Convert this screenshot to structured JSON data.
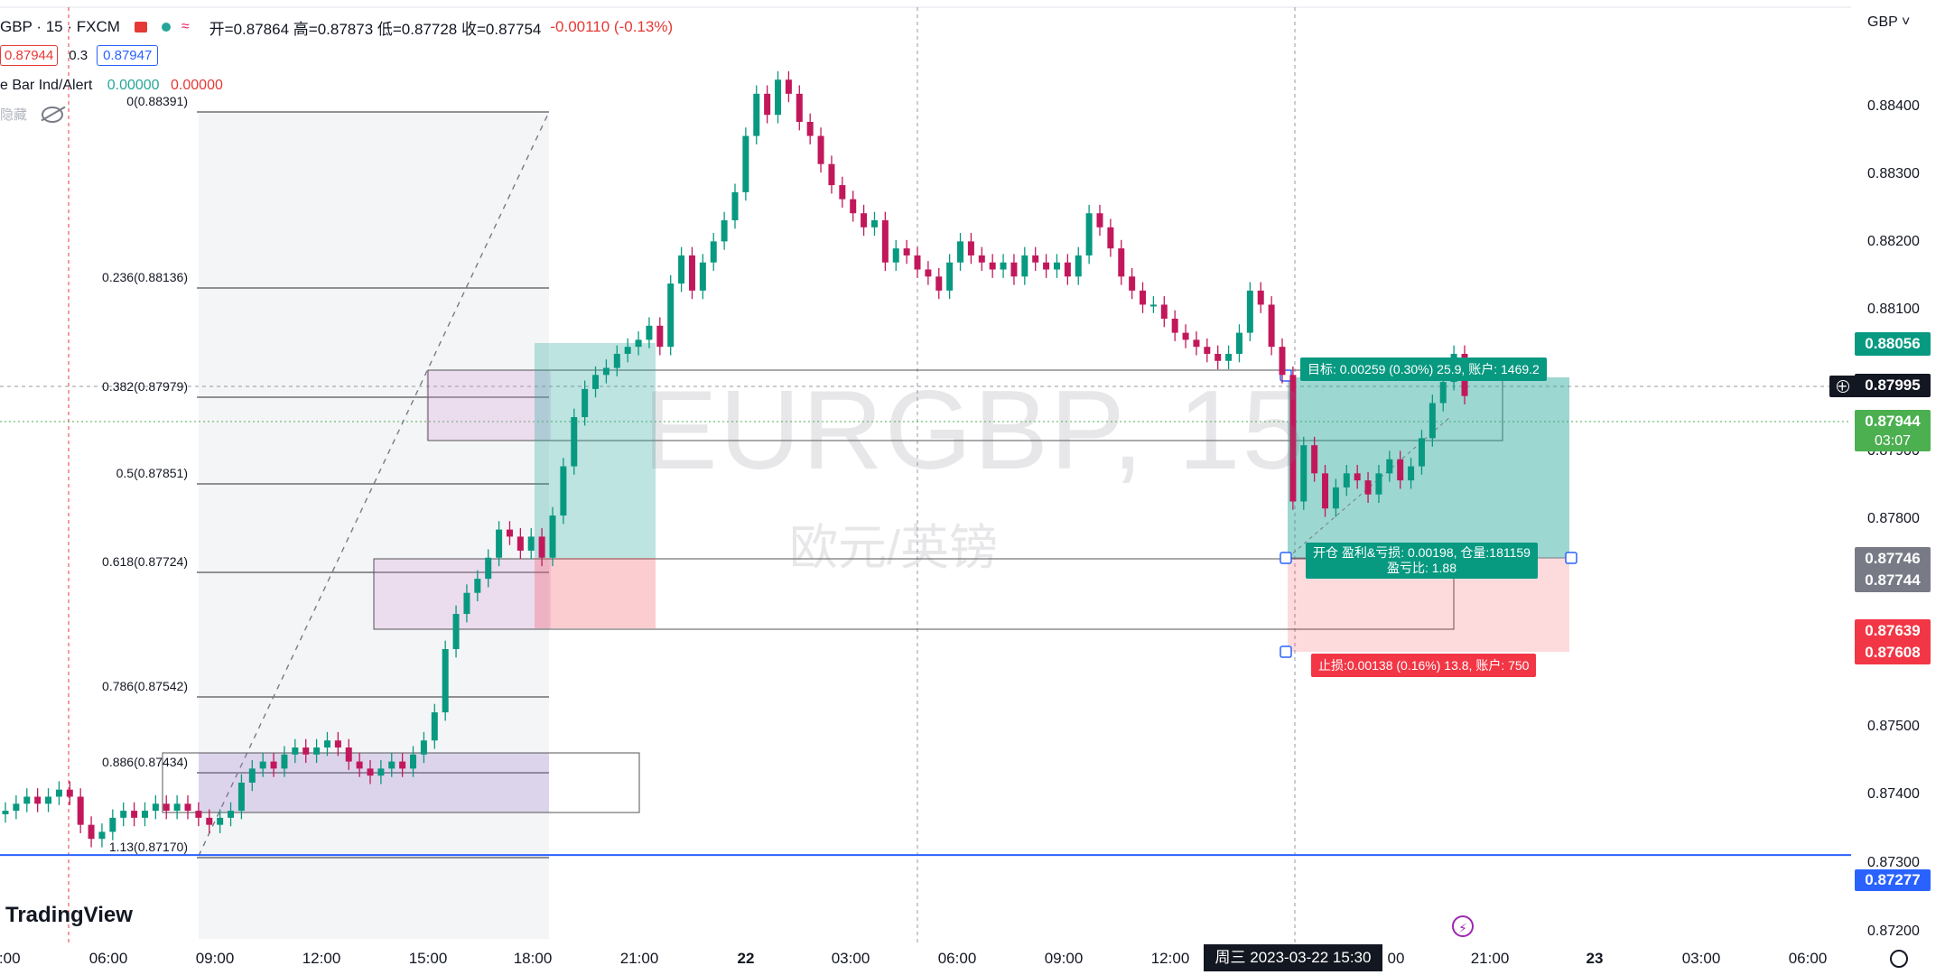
{
  "header": {
    "symbol": "GBP · 15 · FXCM",
    "ohlc": "开=0.87864 高=0.87873 低=0.87728 收=0.87754",
    "change": "-0.00110 (-0.13%)",
    "sell_price": "0.87944",
    "spread": "0.3",
    "buy_price": "0.87947",
    "indicator_name": "e Bar Ind/Alert",
    "indicator_v1": "0.00000",
    "indicator_v2": "0.00000",
    "hidden_label": "隐藏"
  },
  "watermark": {
    "symbol": "EURGBP, 15",
    "description": "欧元/英镑"
  },
  "price_axis": {
    "currency": "GBP",
    "ticks": [
      "0.88400",
      "0.88300",
      "0.88200",
      "0.88100",
      "0.87900",
      "0.87800",
      "0.87500",
      "0.87400",
      "0.87300",
      "0.87200"
    ],
    "labels": {
      "p1": "0.88056",
      "current": "0.87995",
      "last": "0.87944",
      "countdown": "03:07",
      "p2": "0.87746",
      "p3": "0.87744",
      "p4": "0.87639",
      "p5": "0.87608",
      "hline": "0.87277"
    }
  },
  "time_axis": {
    "ticks": [
      "0:00",
      "06:00",
      "09:00",
      "12:00",
      "15:00",
      "18:00",
      "21:00",
      "22",
      "03:00",
      "06:00",
      "09:00",
      "12:00",
      "00",
      "21:00",
      "23",
      "03:00",
      "06:00"
    ],
    "crosshair": "周三 2023-03-22   15:30"
  },
  "fib_levels": [
    "0(0.88391)",
    "0.236(0.88136)",
    "0.382(0.87979)",
    "0.5(0.87851)",
    "0.618(0.87724)",
    "0.786(0.87542)",
    "0.886(0.87434)",
    "1.13(0.87170)"
  ],
  "position_tool": {
    "target": "目标: 0.00259 (0.30%) 25.9, 账户: 1469.2",
    "open_line1": "开仓 盈利&亏损: 0.00198, 仓量:181159",
    "open_line2": "盈亏比: 1.88",
    "stop": "止损:0.00138 (0.16%) 13.8, 账户: 750"
  },
  "branding": {
    "logo": "TradingView"
  },
  "colors": {
    "up": "#089981",
    "down": "#c2185b",
    "blue_line": "#2962ff"
  },
  "chart_data": {
    "type": "candlestick",
    "symbol": "EURGBP",
    "interval": "15",
    "ylim": [
      0.8715,
      0.8846
    ],
    "horizontal_line": 0.87277,
    "closes": [
      0.8734,
      0.8735,
      0.8736,
      0.8735,
      0.8736,
      0.8737,
      0.8736,
      0.8732,
      0.873,
      0.8731,
      0.8733,
      0.8734,
      0.8733,
      0.8734,
      0.8735,
      0.8734,
      0.8735,
      0.8734,
      0.8733,
      0.8732,
      0.8733,
      0.8734,
      0.8738,
      0.874,
      0.8741,
      0.874,
      0.8742,
      0.8743,
      0.8742,
      0.8743,
      0.8744,
      0.8743,
      0.8741,
      0.874,
      0.8739,
      0.874,
      0.8741,
      0.874,
      0.8742,
      0.8744,
      0.8748,
      0.8757,
      0.8762,
      0.8765,
      0.8767,
      0.877,
      0.8774,
      0.8773,
      0.8771,
      0.8773,
      0.877,
      0.8776,
      0.8783,
      0.879,
      0.8794,
      0.8796,
      0.8797,
      0.8799,
      0.88,
      0.8801,
      0.8803,
      0.88,
      0.8809,
      0.8813,
      0.8808,
      0.8812,
      0.8815,
      0.8818,
      0.8822,
      0.883,
      0.8836,
      0.8833,
      0.8838,
      0.8836,
      0.8832,
      0.883,
      0.8826,
      0.8823,
      0.8821,
      0.8819,
      0.8817,
      0.8818,
      0.8812,
      0.8814,
      0.8813,
      0.8811,
      0.881,
      0.8808,
      0.8812,
      0.8815,
      0.8813,
      0.8812,
      0.8811,
      0.8812,
      0.881,
      0.8813,
      0.8812,
      0.8811,
      0.8812,
      0.881,
      0.8813,
      0.8819,
      0.8817,
      0.8814,
      0.881,
      0.8808,
      0.8806,
      0.8806,
      0.8804,
      0.8802,
      0.8801,
      0.88,
      0.8799,
      0.8798,
      0.8799,
      0.8802,
      0.8808,
      0.8806,
      0.88,
      0.8796,
      0.8778,
      0.8786,
      0.8782,
      0.8777,
      0.878,
      0.8782,
      0.8781,
      0.8779,
      0.8782,
      0.8784,
      0.8781,
      0.8783,
      0.8787,
      0.8792,
      0.8795,
      0.8799,
      0.8793
    ]
  }
}
